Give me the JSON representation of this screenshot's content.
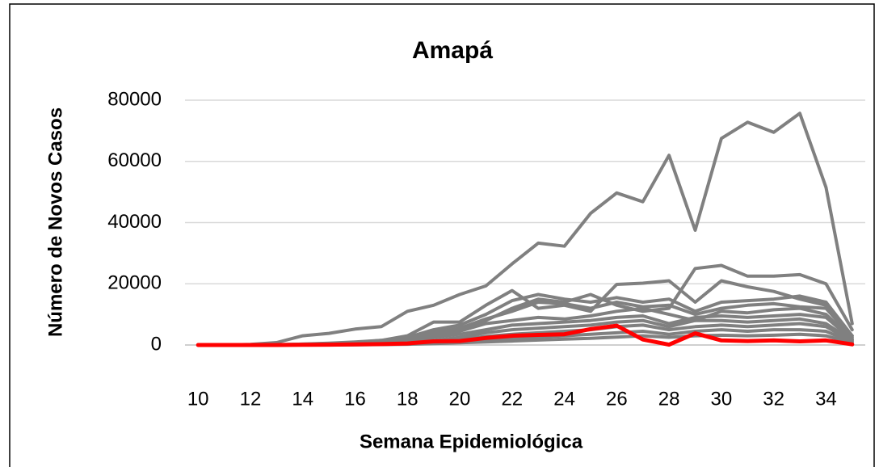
{
  "chart_data": {
    "type": "line",
    "title": "Amapá",
    "xlabel": "Semana Epidemiológica",
    "ylabel": "Número de Novos Casos",
    "x": [
      10,
      11,
      12,
      13,
      14,
      15,
      16,
      17,
      18,
      19,
      20,
      21,
      22,
      23,
      24,
      25,
      26,
      27,
      28,
      29,
      30,
      31,
      32,
      33,
      34,
      35
    ],
    "xlim": [
      9.5,
      35.5
    ],
    "xticks": [
      10,
      12,
      14,
      16,
      18,
      20,
      22,
      24,
      26,
      28,
      30,
      32,
      34
    ],
    "ylim": [
      0,
      80000
    ],
    "yticks": [
      0,
      20000,
      40000,
      60000,
      80000
    ],
    "grid": true,
    "series": [
      {
        "color": "#808080",
        "values": [
          0,
          0,
          200,
          800,
          3000,
          3800,
          5200,
          6000,
          11000,
          13000,
          16500,
          19300,
          26500,
          33300,
          32300,
          43000,
          49700,
          46800,
          62000,
          37500,
          67500,
          72800,
          69500,
          75700,
          51500,
          7000
        ]
      },
      {
        "color": "#808080",
        "values": [
          0,
          0,
          0,
          100,
          300,
          600,
          1000,
          1500,
          2500,
          4000,
          5000,
          8000,
          12000,
          15000,
          14000,
          16500,
          13000,
          11000,
          12000,
          25000,
          26000,
          22500,
          22500,
          23000,
          20000,
          5000
        ]
      },
      {
        "color": "#808080",
        "values": [
          0,
          0,
          0,
          100,
          300,
          500,
          800,
          1500,
          3000,
          7500,
          7500,
          13000,
          17800,
          12000,
          13000,
          11000,
          19800,
          20200,
          21000,
          14000,
          21000,
          19000,
          17500,
          15000,
          13000,
          3000
        ]
      },
      {
        "color": "#808080",
        "values": [
          0,
          0,
          0,
          50,
          200,
          400,
          700,
          1200,
          2500,
          5000,
          6500,
          10000,
          14500,
          16500,
          15000,
          14000,
          15500,
          14000,
          15000,
          11000,
          14000,
          14500,
          15000,
          16000,
          14000,
          3000
        ]
      },
      {
        "color": "#808080",
        "values": [
          0,
          0,
          0,
          50,
          150,
          300,
          600,
          1000,
          2000,
          4000,
          5500,
          8500,
          11000,
          14000,
          13500,
          12000,
          14000,
          12500,
          13000,
          10000,
          12000,
          13000,
          13500,
          12500,
          12000,
          2500
        ]
      },
      {
        "color": "#808080",
        "values": [
          0,
          0,
          0,
          20,
          100,
          200,
          400,
          800,
          1500,
          3000,
          4500,
          7000,
          8000,
          9000,
          8500,
          9500,
          11000,
          12000,
          10000,
          8000,
          11000,
          10500,
          11500,
          12000,
          10000,
          2000
        ]
      },
      {
        "color": "#808080",
        "values": [
          0,
          0,
          0,
          20,
          80,
          150,
          300,
          600,
          1200,
          2500,
          3500,
          5000,
          6500,
          7000,
          7500,
          8000,
          9000,
          9500,
          7000,
          9000,
          9500,
          9000,
          9500,
          10000,
          9000,
          1800
        ]
      },
      {
        "color": "#808080",
        "values": [
          0,
          0,
          0,
          10,
          50,
          100,
          200,
          400,
          800,
          1500,
          2500,
          4000,
          5000,
          5500,
          6000,
          6500,
          7500,
          8000,
          6000,
          8000,
          8000,
          7500,
          8000,
          8500,
          7000,
          1500
        ]
      },
      {
        "color": "#808080",
        "values": [
          0,
          0,
          0,
          10,
          30,
          80,
          150,
          300,
          600,
          1000,
          1800,
          2800,
          3500,
          4000,
          4500,
          5000,
          6000,
          6500,
          5000,
          6000,
          6500,
          6000,
          6500,
          7000,
          6000,
          1200
        ]
      },
      {
        "color": "#808080",
        "values": [
          0,
          0,
          0,
          5,
          20,
          50,
          100,
          200,
          400,
          700,
          1200,
          1800,
          2200,
          2600,
          3000,
          3500,
          4000,
          4500,
          3500,
          4500,
          5000,
          4500,
          5000,
          5000,
          4500,
          900
        ]
      },
      {
        "color": "#808080",
        "values": [
          0,
          0,
          0,
          5,
          10,
          30,
          60,
          120,
          250,
          450,
          700,
          1000,
          1300,
          1600,
          1900,
          2200,
          2600,
          3000,
          2500,
          3000,
          3200,
          3000,
          3200,
          3500,
          3000,
          600
        ]
      },
      {
        "color": "#ff0000",
        "values": [
          0,
          0,
          0,
          0,
          50,
          100,
          200,
          300,
          500,
          1200,
          1300,
          2300,
          3000,
          3300,
          3500,
          5200,
          6300,
          1800,
          100,
          3800,
          1500,
          1300,
          1500,
          1200,
          1500,
          200
        ]
      }
    ]
  }
}
